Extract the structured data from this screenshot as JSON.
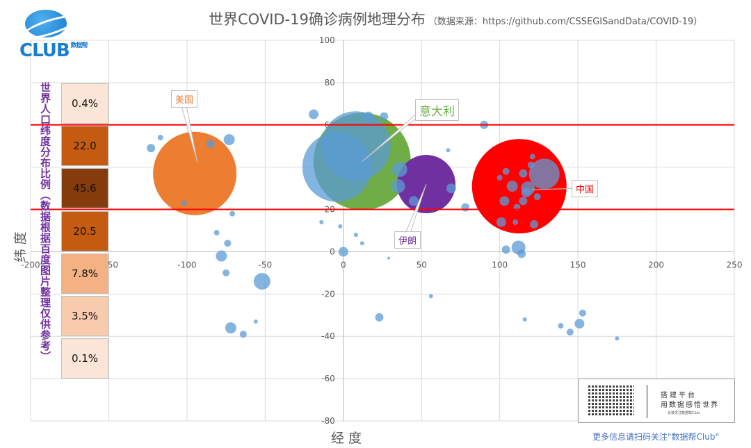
{
  "title": "世界COVID-19确诊病例地理分布",
  "subtitle": "（数据来源：https://github.com/CSSEGISandData/COVID-19）",
  "logo": {
    "text": "CLUB",
    "sub": "数据帮"
  },
  "side_label": "世界人口纬度分布比例（数据根据百度图片整理仅供参考）",
  "side_table": [
    {
      "value": "0.4%",
      "color": "#fbe5d6"
    },
    {
      "value": "22.0",
      "color": "#c55a11"
    },
    {
      "value": "45.6",
      "color": "#843c0c"
    },
    {
      "value": "20.5",
      "color": "#c55a11"
    },
    {
      "value": "7.8%",
      "color": "#f4b183"
    },
    {
      "value": "3.5%",
      "color": "#f8cbad"
    },
    {
      "value": "0.1%",
      "color": "#fbe5d6"
    }
  ],
  "qr": {
    "line1": "搭建平台",
    "line2": "用数据感悟世界",
    "line3": "长按关注数据帮Club"
  },
  "footer": "更多信息请扫码关注\"数据帮Club\"",
  "chart_data": {
    "type": "scatter",
    "bubble": true,
    "xlabel": "经 度",
    "ylabel": "纬 度",
    "xlim": [
      -200,
      250
    ],
    "ylim": [
      -80,
      100
    ],
    "xticks": [
      -200,
      -150,
      -100,
      -50,
      0,
      50,
      100,
      150,
      200,
      250
    ],
    "yticks": [
      -80,
      -60,
      -40,
      -20,
      0,
      20,
      40,
      60,
      80,
      100
    ],
    "grid": true,
    "reference_lines": {
      "lat": [
        60,
        20
      ],
      "color": "#ff0000"
    },
    "highlight": [
      {
        "name": "美国",
        "lon": -95,
        "lat": 37,
        "size": 60,
        "color": "#ed7d31"
      },
      {
        "name": "意大利",
        "lon": 12,
        "lat": 42.7,
        "size": 70,
        "color": "#70ad47"
      },
      {
        "name": "伊朗",
        "lon": 53,
        "lat": 32,
        "size": 42,
        "color": "#7030a0"
      },
      {
        "name": "中国",
        "lon": 112.5,
        "lat": 31,
        "size": 68,
        "color": "#ff0000"
      }
    ],
    "others_color": "#5b9bd5",
    "others": [
      [
        -4,
        40,
        50
      ],
      [
        8,
        50,
        50
      ],
      [
        128.5,
        36.8,
        22
      ],
      [
        -19,
        65,
        7
      ],
      [
        -123,
        49,
        6
      ],
      [
        -117,
        54,
        4
      ],
      [
        -85,
        51,
        6
      ],
      [
        -73,
        53,
        8
      ],
      [
        -102,
        23,
        4
      ],
      [
        90,
        60,
        6
      ],
      [
        26,
        64,
        6
      ],
      [
        16,
        64,
        7
      ],
      [
        36,
        39,
        11
      ],
      [
        35,
        31,
        10
      ],
      [
        69,
        30,
        7
      ],
      [
        78,
        21,
        6
      ],
      [
        67,
        48,
        3
      ],
      [
        45,
        24,
        7
      ],
      [
        101,
        14,
        7
      ],
      [
        112,
        2,
        10
      ],
      [
        114,
        -1,
        6
      ],
      [
        104,
        1,
        6
      ],
      [
        122,
        13,
        6
      ],
      [
        0,
        0,
        7
      ],
      [
        -78,
        -2,
        8
      ],
      [
        -74,
        4,
        5
      ],
      [
        -81,
        9,
        4
      ],
      [
        -71,
        18,
        4
      ],
      [
        -75,
        -10,
        5
      ],
      [
        -52,
        -14,
        12
      ],
      [
        -72,
        -36,
        8
      ],
      [
        -64,
        -39,
        5
      ],
      [
        -56,
        -33,
        3
      ],
      [
        23,
        -31,
        6
      ],
      [
        56,
        -21,
        3
      ],
      [
        116,
        -32,
        3
      ],
      [
        151,
        -34,
        7
      ],
      [
        153,
        -29,
        5
      ],
      [
        139,
        -35,
        4
      ],
      [
        145,
        -38,
        5
      ],
      [
        175,
        -41,
        3
      ],
      [
        -14,
        14,
        3
      ],
      [
        -2,
        12,
        3
      ],
      [
        12,
        4,
        3
      ],
      [
        8,
        8,
        3
      ],
      [
        29,
        -3,
        2
      ],
      [
        104,
        38,
        5
      ],
      [
        108,
        31,
        8
      ],
      [
        100,
        35,
        4
      ],
      [
        115,
        24,
        6
      ],
      [
        111,
        21,
        5
      ],
      [
        118,
        30,
        10
      ],
      [
        115,
        37,
        6
      ],
      [
        110,
        14,
        4
      ],
      [
        117,
        28,
        7
      ],
      [
        120,
        41,
        5
      ],
      [
        121,
        45,
        4
      ],
      [
        103,
        24,
        7
      ],
      [
        124,
        26,
        5
      ]
    ]
  }
}
